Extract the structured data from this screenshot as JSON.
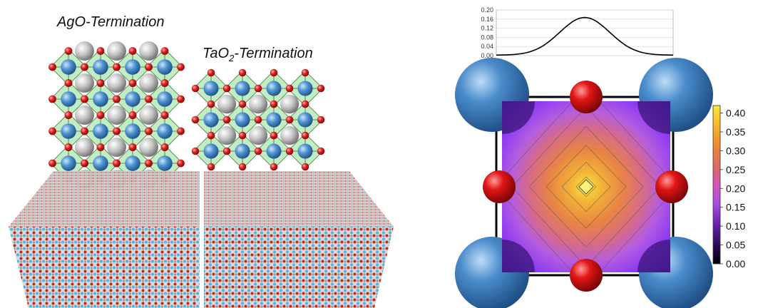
{
  "left": {
    "ago_label": "AgO-Termination",
    "tao2_label_main": "TaO",
    "tao2_label_sub": "2",
    "tao2_label_tail": "-Termination"
  },
  "profile": {
    "y_ticks": [
      "0.20",
      "0.16",
      "0.12",
      "0.08",
      "0.04",
      "0.00"
    ],
    "ylim": [
      0,
      0.2
    ],
    "peak": 0.165
  },
  "colorbar": {
    "ticks": [
      "0.40",
      "0.35",
      "0.30",
      "0.25",
      "0.20",
      "0.15",
      "0.10",
      "0.05",
      "0.00"
    ],
    "range": [
      0,
      0.42
    ]
  },
  "colors": {
    "ta_atom": "#3f86c6",
    "o_atom": "#d61f1f",
    "ag_atom": "#b9b9b9",
    "octahedron": "#8fdc8f"
  }
}
